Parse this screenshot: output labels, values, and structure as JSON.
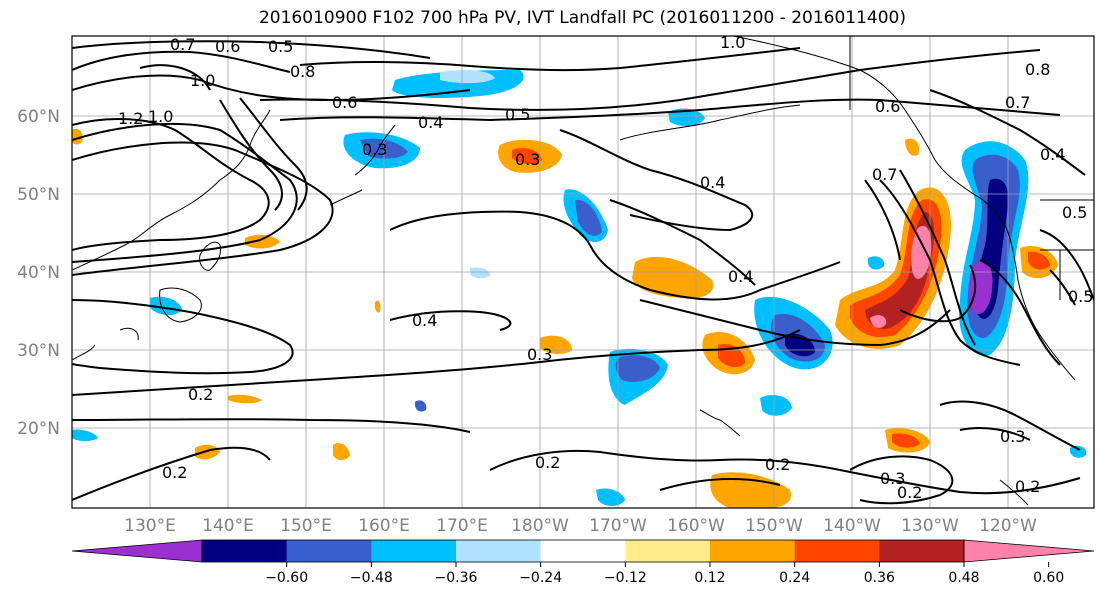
{
  "title": "2016010900 F102 700 hPa PV, IVT Landfall PC (2016011200 - 2016011400)",
  "lat_labels": [
    "60°N",
    "50°N",
    "40°N",
    "30°N",
    "20°N"
  ],
  "lon_labels": [
    "130°E",
    "140°E",
    "150°E",
    "160°E",
    "170°E",
    "180°W",
    "170°W",
    "160°W",
    "150°W",
    "140°W",
    "130°W",
    "120°W"
  ],
  "colorbar": {
    "ticks": [
      "−0.60",
      "−0.48",
      "−0.36",
      "−0.24",
      "−0.12",
      "0.12",
      "0.24",
      "0.36",
      "0.48",
      "0.60"
    ],
    "colors": [
      "#9b30d0",
      "#000080",
      "#3a5fcd",
      "#00bfff",
      "#b0e2ff",
      "#ffffff",
      "#ffec8b",
      "#ffa500",
      "#ff4500",
      "#b22222",
      "#ff82ab"
    ]
  },
  "contour_labels": [
    "0.7",
    "0.6",
    "0.5",
    "1.0",
    "0.8",
    "1.0",
    "1.2",
    "1.0",
    "0.6",
    "0.5",
    "0.4",
    "0.3",
    "0.3",
    "0.4",
    "0.4",
    "0.4",
    "0.3",
    "0.2",
    "0.2",
    "0.2",
    "0.2",
    "0.3",
    "0.3",
    "0.2",
    "0.2",
    "0.7",
    "0.6",
    "0.8",
    "0.7",
    "0.4",
    "0.5",
    "0.5"
  ]
}
